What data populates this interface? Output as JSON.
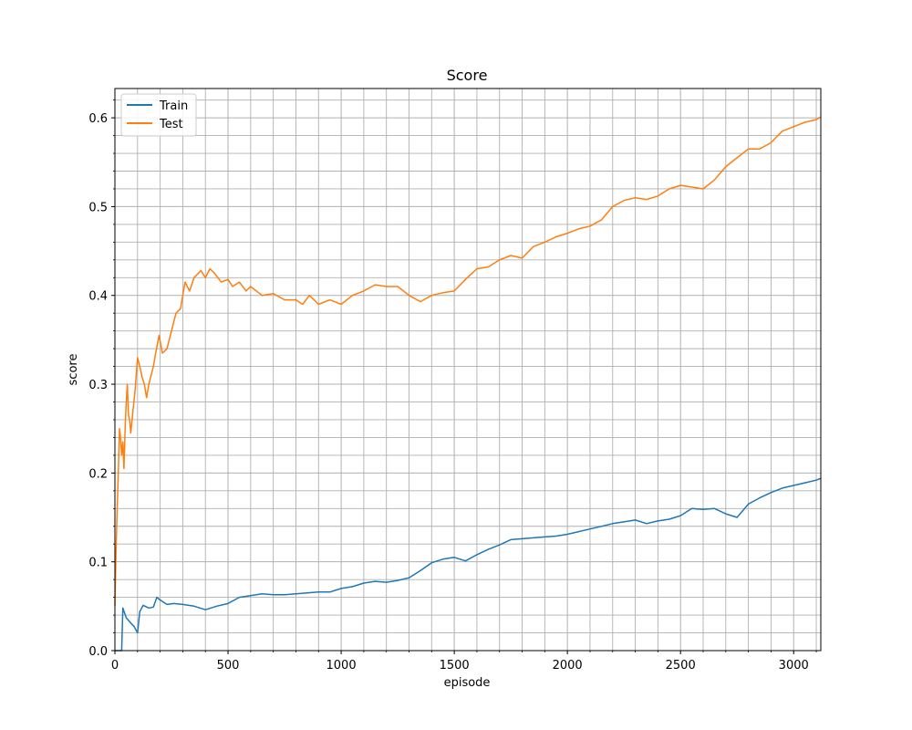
{
  "chart_data": {
    "type": "line",
    "title": "Score",
    "xlabel": "episode",
    "ylabel": "score",
    "xlim": [
      0,
      3120
    ],
    "ylim": [
      0,
      0.633
    ],
    "grid": true,
    "minor_grid": true,
    "legend_position": "top-left",
    "x_ticks": [
      0,
      500,
      1000,
      1500,
      2000,
      2500,
      3000
    ],
    "y_ticks": [
      0.0,
      0.1,
      0.2,
      0.3,
      0.4,
      0.5,
      0.6
    ],
    "x_tick_labels": [
      "0",
      "500",
      "1000",
      "1500",
      "2000",
      "2500",
      "3000"
    ],
    "y_tick_labels": [
      "0.0",
      "0.1",
      "0.2",
      "0.3",
      "0.4",
      "0.5",
      "0.6"
    ],
    "series": [
      {
        "name": "Train",
        "color": "#1f77b4",
        "points": [
          [
            0,
            0
          ],
          [
            30,
            0
          ],
          [
            35,
            0.048
          ],
          [
            50,
            0.037
          ],
          [
            70,
            0.031
          ],
          [
            85,
            0.027
          ],
          [
            100,
            0.02
          ],
          [
            110,
            0.044
          ],
          [
            125,
            0.051
          ],
          [
            150,
            0.048
          ],
          [
            170,
            0.049
          ],
          [
            185,
            0.06
          ],
          [
            200,
            0.057
          ],
          [
            230,
            0.052
          ],
          [
            260,
            0.053
          ],
          [
            300,
            0.052
          ],
          [
            350,
            0.05
          ],
          [
            400,
            0.046
          ],
          [
            450,
            0.05
          ],
          [
            500,
            0.053
          ],
          [
            550,
            0.06
          ],
          [
            600,
            0.062
          ],
          [
            650,
            0.064
          ],
          [
            700,
            0.063
          ],
          [
            750,
            0.063
          ],
          [
            800,
            0.064
          ],
          [
            850,
            0.065
          ],
          [
            900,
            0.066
          ],
          [
            950,
            0.066
          ],
          [
            1000,
            0.07
          ],
          [
            1050,
            0.072
          ],
          [
            1100,
            0.076
          ],
          [
            1150,
            0.078
          ],
          [
            1200,
            0.077
          ],
          [
            1250,
            0.079
          ],
          [
            1300,
            0.082
          ],
          [
            1350,
            0.09
          ],
          [
            1400,
            0.099
          ],
          [
            1450,
            0.103
          ],
          [
            1500,
            0.105
          ],
          [
            1550,
            0.101
          ],
          [
            1600,
            0.108
          ],
          [
            1650,
            0.114
          ],
          [
            1700,
            0.119
          ],
          [
            1750,
            0.125
          ],
          [
            1800,
            0.126
          ],
          [
            1850,
            0.127
          ],
          [
            1900,
            0.128
          ],
          [
            1950,
            0.129
          ],
          [
            2000,
            0.131
          ],
          [
            2050,
            0.134
          ],
          [
            2100,
            0.137
          ],
          [
            2150,
            0.14
          ],
          [
            2200,
            0.143
          ],
          [
            2250,
            0.145
          ],
          [
            2300,
            0.147
          ],
          [
            2350,
            0.143
          ],
          [
            2400,
            0.146
          ],
          [
            2450,
            0.148
          ],
          [
            2500,
            0.152
          ],
          [
            2550,
            0.16
          ],
          [
            2600,
            0.159
          ],
          [
            2650,
            0.16
          ],
          [
            2700,
            0.154
          ],
          [
            2750,
            0.15
          ],
          [
            2800,
            0.165
          ],
          [
            2850,
            0.172
          ],
          [
            2900,
            0.178
          ],
          [
            2950,
            0.183
          ],
          [
            3000,
            0.186
          ],
          [
            3050,
            0.189
          ],
          [
            3100,
            0.192
          ],
          [
            3120,
            0.194
          ]
        ]
      },
      {
        "name": "Test",
        "color": "#ff7f0e",
        "points": [
          [
            0,
            0.05
          ],
          [
            5,
            0.11
          ],
          [
            10,
            0.16
          ],
          [
            15,
            0.2
          ],
          [
            20,
            0.25
          ],
          [
            25,
            0.24
          ],
          [
            30,
            0.22
          ],
          [
            35,
            0.235
          ],
          [
            40,
            0.205
          ],
          [
            45,
            0.25
          ],
          [
            50,
            0.28
          ],
          [
            55,
            0.3
          ],
          [
            60,
            0.265
          ],
          [
            65,
            0.26
          ],
          [
            70,
            0.245
          ],
          [
            80,
            0.27
          ],
          [
            90,
            0.295
          ],
          [
            100,
            0.33
          ],
          [
            110,
            0.32
          ],
          [
            120,
            0.308
          ],
          [
            130,
            0.3
          ],
          [
            140,
            0.285
          ],
          [
            150,
            0.3
          ],
          [
            160,
            0.31
          ],
          [
            170,
            0.32
          ],
          [
            180,
            0.335
          ],
          [
            195,
            0.355
          ],
          [
            210,
            0.335
          ],
          [
            230,
            0.34
          ],
          [
            250,
            0.36
          ],
          [
            270,
            0.38
          ],
          [
            290,
            0.385
          ],
          [
            310,
            0.415
          ],
          [
            330,
            0.405
          ],
          [
            350,
            0.42
          ],
          [
            380,
            0.428
          ],
          [
            400,
            0.42
          ],
          [
            420,
            0.43
          ],
          [
            440,
            0.425
          ],
          [
            470,
            0.415
          ],
          [
            500,
            0.418
          ],
          [
            520,
            0.41
          ],
          [
            550,
            0.415
          ],
          [
            580,
            0.405
          ],
          [
            600,
            0.41
          ],
          [
            650,
            0.4
          ],
          [
            700,
            0.402
          ],
          [
            750,
            0.395
          ],
          [
            800,
            0.395
          ],
          [
            830,
            0.39
          ],
          [
            860,
            0.4
          ],
          [
            900,
            0.39
          ],
          [
            950,
            0.395
          ],
          [
            1000,
            0.39
          ],
          [
            1050,
            0.4
          ],
          [
            1100,
            0.405
          ],
          [
            1150,
            0.412
          ],
          [
            1200,
            0.41
          ],
          [
            1250,
            0.41
          ],
          [
            1300,
            0.4
          ],
          [
            1350,
            0.393
          ],
          [
            1400,
            0.4
          ],
          [
            1450,
            0.403
          ],
          [
            1500,
            0.405
          ],
          [
            1550,
            0.418
          ],
          [
            1600,
            0.43
          ],
          [
            1650,
            0.432
          ],
          [
            1700,
            0.44
          ],
          [
            1750,
            0.445
          ],
          [
            1800,
            0.442
          ],
          [
            1850,
            0.455
          ],
          [
            1900,
            0.46
          ],
          [
            1950,
            0.466
          ],
          [
            2000,
            0.47
          ],
          [
            2050,
            0.475
          ],
          [
            2100,
            0.478
          ],
          [
            2150,
            0.485
          ],
          [
            2200,
            0.5
          ],
          [
            2250,
            0.507
          ],
          [
            2300,
            0.51
          ],
          [
            2350,
            0.508
          ],
          [
            2400,
            0.512
          ],
          [
            2450,
            0.52
          ],
          [
            2500,
            0.524
          ],
          [
            2550,
            0.522
          ],
          [
            2600,
            0.52
          ],
          [
            2650,
            0.53
          ],
          [
            2700,
            0.545
          ],
          [
            2750,
            0.555
          ],
          [
            2800,
            0.565
          ],
          [
            2850,
            0.565
          ],
          [
            2900,
            0.572
          ],
          [
            2950,
            0.585
          ],
          [
            3000,
            0.59
          ],
          [
            3050,
            0.595
          ],
          [
            3100,
            0.598
          ],
          [
            3120,
            0.601
          ]
        ]
      }
    ]
  }
}
